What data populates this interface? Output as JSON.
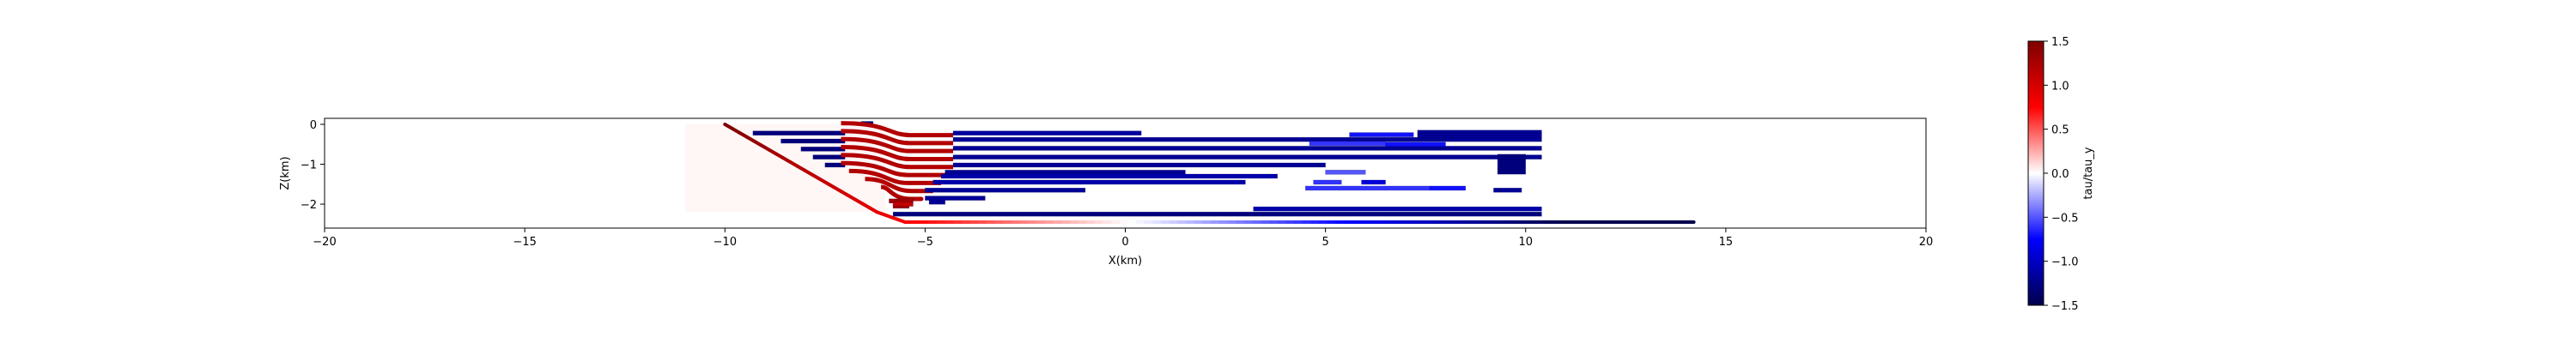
{
  "chart_data": {
    "type": "heatmap",
    "title": "",
    "xlabel": "X(km)",
    "ylabel": "Z(km)",
    "xlim": [
      -20,
      20
    ],
    "ylim": [
      -2.6,
      0.15
    ],
    "x_ticks": [
      {
        "value": -20,
        "label": "−20"
      },
      {
        "value": -15,
        "label": "−15"
      },
      {
        "value": -10,
        "label": "−10"
      },
      {
        "value": -5,
        "label": "−5"
      },
      {
        "value": 0,
        "label": "0"
      },
      {
        "value": 5,
        "label": "5"
      },
      {
        "value": 10,
        "label": "10"
      },
      {
        "value": 15,
        "label": "15"
      },
      {
        "value": 20,
        "label": "20"
      }
    ],
    "y_ticks": [
      {
        "value": 0,
        "label": "0"
      },
      {
        "value": -1,
        "label": "−1"
      },
      {
        "value": -2,
        "label": "−2"
      }
    ],
    "colorbar": {
      "label": "tau/tau_y",
      "range": [
        -1.5,
        1.5
      ],
      "colormap": [
        "#00004c",
        "#0000ff",
        "#ffffff",
        "#ff0000",
        "#7f0000"
      ],
      "ticks": [
        {
          "value": 1.5,
          "label": "1.5"
        },
        {
          "value": 1.0,
          "label": "1.0"
        },
        {
          "value": 0.5,
          "label": "0.5"
        },
        {
          "value": 0.0,
          "label": "0.0"
        },
        {
          "value": -0.5,
          "label": "−0.5"
        },
        {
          "value": -1.0,
          "label": "−1.0"
        },
        {
          "value": -1.5,
          "label": "−1.5"
        }
      ]
    },
    "fault_trace": {
      "points": [
        [
          -10.0,
          0.0
        ],
        [
          -6.2,
          -2.2
        ],
        [
          -5.5,
          -2.45
        ],
        [
          14.2,
          -2.45
        ]
      ],
      "value_start": 1.5,
      "value_end": -1.5
    },
    "background_wash": {
      "x_range": [
        -11,
        -6
      ],
      "z_range": [
        -2.2,
        0
      ],
      "value": 0.05
    },
    "fractures": [
      {
        "x": [
          -9.3,
          -7.0
        ],
        "z": -0.22,
        "value": -1.3
      },
      {
        "x": [
          -8.6,
          -7.0
        ],
        "z": -0.42,
        "value": -1.3
      },
      {
        "x": [
          -8.1,
          -7.0
        ],
        "z": -0.62,
        "value": -1.3
      },
      {
        "x": [
          -7.8,
          -7.0
        ],
        "z": -0.82,
        "value": -1.3
      },
      {
        "x": [
          -7.5,
          -7.0
        ],
        "z": -1.02,
        "value": -1.3
      },
      {
        "x": [
          -6.6,
          -6.3
        ],
        "z": 0.02,
        "value": -1.4
      },
      {
        "x": [
          -7.1,
          -4.3
        ],
        "z": -0.12,
        "value": 1.2,
        "shape": "s"
      },
      {
        "x": [
          -7.1,
          -4.3
        ],
        "z": -0.32,
        "value": 1.2,
        "shape": "s"
      },
      {
        "x": [
          -7.1,
          -4.3
        ],
        "z": -0.52,
        "value": 1.2,
        "shape": "s"
      },
      {
        "x": [
          -7.1,
          -4.3
        ],
        "z": -0.72,
        "value": 1.2,
        "shape": "s"
      },
      {
        "x": [
          -7.1,
          -4.3
        ],
        "z": -0.92,
        "value": 1.2,
        "shape": "s"
      },
      {
        "x": [
          -7.1,
          -4.4
        ],
        "z": -1.12,
        "value": 1.2,
        "shape": "s"
      },
      {
        "x": [
          -6.9,
          -4.6
        ],
        "z": -1.32,
        "value": 1.2,
        "shape": "s"
      },
      {
        "x": [
          -6.5,
          -4.8
        ],
        "z": -1.52,
        "value": 1.2,
        "shape": "s"
      },
      {
        "x": [
          -6.1,
          -5.2
        ],
        "z": -1.72,
        "value": 1.2,
        "shape": "s"
      },
      {
        "x": [
          -5.9,
          -5.3
        ],
        "z": -1.92,
        "value": 1.3
      },
      {
        "x": [
          -5.8,
          -5.4
        ],
        "z": -2.05,
        "value": 1.3
      },
      {
        "x": [
          -4.3,
          0.4
        ],
        "z": -0.22,
        "value": -1.15
      },
      {
        "x": [
          -4.3,
          10.4
        ],
        "z": -0.38,
        "value": -1.2
      },
      {
        "x": [
          -4.3,
          10.4
        ],
        "z": -0.6,
        "value": -1.2
      },
      {
        "x": [
          -4.3,
          10.4
        ],
        "z": -0.82,
        "value": -1.2
      },
      {
        "x": [
          -4.3,
          5.0
        ],
        "z": -1.02,
        "value": -1.2
      },
      {
        "x": [
          -4.5,
          1.5
        ],
        "z": -1.2,
        "value": -1.2
      },
      {
        "x": [
          -4.6,
          3.8
        ],
        "z": -1.3,
        "value": -1.1
      },
      {
        "x": [
          -4.8,
          3.0
        ],
        "z": -1.45,
        "value": -1.1
      },
      {
        "x": [
          -5.0,
          -1.0
        ],
        "z": -1.65,
        "value": -1.2
      },
      {
        "x": [
          -5.0,
          -3.5
        ],
        "z": -1.85,
        "value": -1.2
      },
      {
        "x": [
          -4.9,
          -4.5
        ],
        "z": -1.95,
        "value": -1.2
      },
      {
        "x": [
          -5.8,
          10.4
        ],
        "z": -2.25,
        "value": -1.3
      },
      {
        "x": [
          5.6,
          7.2
        ],
        "z": -0.26,
        "value": -0.7
      },
      {
        "x": [
          7.3,
          10.4
        ],
        "z": -0.2,
        "value": -1.2
      },
      {
        "x": [
          7.3,
          10.4
        ],
        "z": -0.28,
        "value": -1.2
      },
      {
        "x": [
          4.6,
          6.5
        ],
        "z": -0.48,
        "value": -0.6
      },
      {
        "x": [
          6.5,
          8.0
        ],
        "z": -0.5,
        "value": -0.7
      },
      {
        "x": [
          5.0,
          6.0
        ],
        "z": -1.2,
        "value": -0.5
      },
      {
        "x": [
          5.9,
          6.5
        ],
        "z": -1.45,
        "value": -0.9
      },
      {
        "x": [
          4.5,
          7.6
        ],
        "z": -1.6,
        "value": -0.6
      },
      {
        "x": [
          7.6,
          8.5
        ],
        "z": -1.6,
        "value": -0.7
      },
      {
        "x": [
          9.2,
          9.9
        ],
        "z": -1.65,
        "value": -1.2
      },
      {
        "x": [
          3.2,
          10.4
        ],
        "z": -2.12,
        "value": -1.1
      },
      {
        "x": [
          9.3,
          10.0
        ],
        "z": -1.0,
        "value": -1.3,
        "thickness": 0.5
      },
      {
        "x": [
          -5.8,
          -5.3
        ],
        "z": -2.0,
        "value": 1.1
      },
      {
        "x": [
          4.7,
          5.4
        ],
        "z": -1.45,
        "value": -0.6
      }
    ]
  }
}
